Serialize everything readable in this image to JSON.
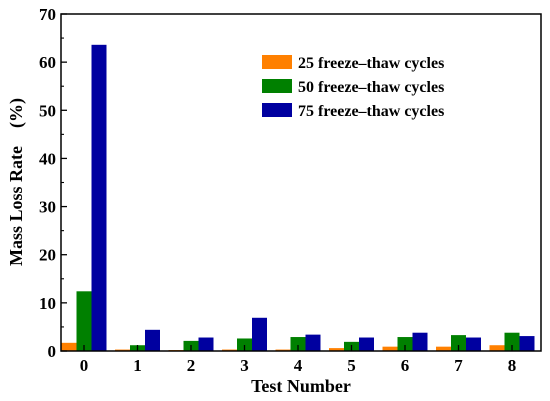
{
  "chart_data": {
    "type": "bar",
    "title": "",
    "xlabel": "Test Number",
    "ylabel": "Mass Loss Rate　(%)",
    "categories": [
      "0",
      "1",
      "2",
      "3",
      "4",
      "5",
      "6",
      "7",
      "8"
    ],
    "ylim": [
      0,
      70
    ],
    "yticks": [
      "0",
      "10",
      "20",
      "30",
      "40",
      "50",
      "60",
      "70"
    ],
    "grid": false,
    "legend_position": "top-right",
    "series": [
      {
        "name": "25 freeze–thaw cycles",
        "color": "#ff8000",
        "values": [
          1.7,
          0.3,
          0.2,
          0.3,
          0.3,
          0.6,
          0.9,
          0.9,
          1.2
        ]
      },
      {
        "name": "50 freeze–thaw cycles",
        "color": "#008000",
        "values": [
          12.4,
          1.2,
          2.1,
          2.6,
          2.9,
          1.9,
          2.9,
          3.3,
          3.8
        ]
      },
      {
        "name": "75 freeze–thaw cycles",
        "color": "#0000a0",
        "values": [
          63.6,
          4.4,
          2.8,
          6.9,
          3.4,
          2.8,
          3.8,
          2.8,
          3.1
        ]
      }
    ]
  }
}
